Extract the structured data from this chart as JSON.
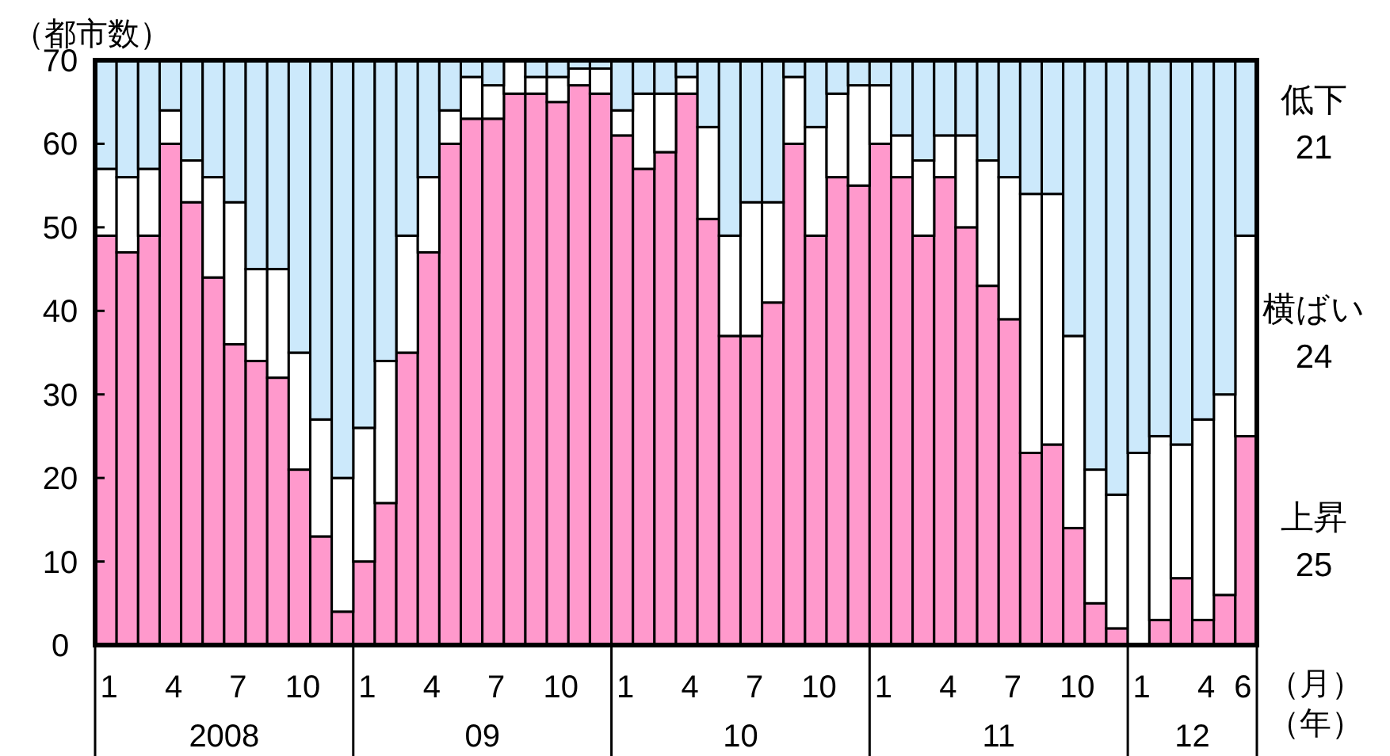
{
  "chart_data": {
    "type": "bar",
    "stacked": true,
    "ylabel": "（都市数）",
    "xlabel": "（月）",
    "categories": [
      "1",
      null,
      null,
      "4",
      null,
      null,
      "7",
      null,
      null,
      "10",
      null,
      null,
      "1",
      null,
      null,
      "4",
      null,
      null,
      "7",
      null,
      null,
      "10",
      null,
      null,
      "1",
      null,
      null,
      "4",
      null,
      null,
      "7",
      null,
      null,
      "10",
      null,
      null,
      "1",
      null,
      null,
      "4",
      null,
      null,
      "7",
      null,
      null,
      "10",
      null,
      null,
      "1",
      null,
      null,
      "4",
      null,
      "6"
    ],
    "series": [
      {
        "name": "上昇",
        "color": "#ff99cc",
        "values": [
          49,
          47,
          49,
          60,
          53,
          44,
          36,
          34,
          32,
          21,
          13,
          4,
          10,
          17,
          35,
          47,
          60,
          63,
          63,
          66,
          66,
          65,
          67,
          66,
          61,
          57,
          59,
          66,
          51,
          37,
          37,
          41,
          60,
          49,
          56,
          55,
          60,
          56,
          49,
          56,
          50,
          43,
          39,
          23,
          24,
          14,
          5,
          2,
          0,
          3,
          8,
          3,
          6,
          25
        ]
      },
      {
        "name": "横ばい",
        "color": "#ffffff",
        "values": [
          8,
          9,
          8,
          4,
          5,
          12,
          17,
          11,
          13,
          14,
          14,
          16,
          16,
          17,
          14,
          9,
          4,
          5,
          4,
          4,
          2,
          3,
          2,
          3,
          3,
          9,
          7,
          2,
          11,
          12,
          16,
          12,
          8,
          13,
          10,
          12,
          7,
          5,
          9,
          5,
          11,
          15,
          17,
          31,
          30,
          23,
          16,
          16,
          23,
          22,
          16,
          24,
          24,
          24
        ]
      },
      {
        "name": "低下",
        "color": "#cce9fb",
        "values": [
          13,
          14,
          13,
          6,
          12,
          14,
          17,
          25,
          25,
          35,
          43,
          50,
          44,
          36,
          21,
          14,
          6,
          2,
          3,
          0,
          2,
          2,
          1,
          1,
          6,
          4,
          4,
          2,
          8,
          21,
          17,
          17,
          2,
          8,
          4,
          3,
          3,
          9,
          12,
          9,
          9,
          12,
          14,
          16,
          16,
          33,
          49,
          52,
          47,
          45,
          46,
          43,
          40,
          21
        ]
      }
    ],
    "ylim": [
      0,
      70
    ],
    "yticks": [
      0,
      10,
      20,
      30,
      40,
      50,
      60,
      70
    ],
    "annotations": [
      "2008",
      "09",
      "10",
      "11",
      "12",
      "（年）",
      "25",
      "24",
      "21"
    ]
  }
}
